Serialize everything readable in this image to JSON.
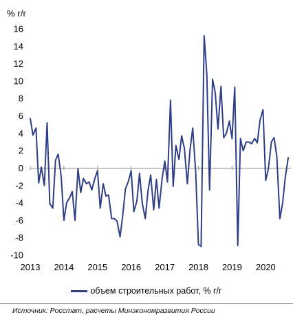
{
  "chart_data": {
    "type": "line",
    "unit_label": "% г/г",
    "xlim": [
      2013.0,
      2020.75
    ],
    "ylim": [
      -10,
      16
    ],
    "yticks": [
      16,
      14,
      12,
      10,
      8,
      6,
      4,
      2,
      0,
      -2,
      -4,
      -6,
      -8,
      -10
    ],
    "xticks": [
      "2013",
      "2014",
      "2015",
      "2016",
      "2017",
      "2018",
      "2019",
      "2020"
    ],
    "grid": false,
    "legend_position": "bottom",
    "color": "#2e3e86",
    "series": [
      {
        "name": "объем строительных работ, % г/г",
        "x": [
          2013.0,
          2013.08,
          2013.17,
          2013.25,
          2013.33,
          2013.42,
          2013.5,
          2013.58,
          2013.67,
          2013.75,
          2013.83,
          2013.92,
          2014.0,
          2014.08,
          2014.17,
          2014.25,
          2014.33,
          2014.42,
          2014.5,
          2014.58,
          2014.67,
          2014.75,
          2014.83,
          2014.92,
          2015.0,
          2015.08,
          2015.17,
          2015.25,
          2015.33,
          2015.42,
          2015.5,
          2015.58,
          2015.67,
          2015.75,
          2015.83,
          2015.92,
          2016.0,
          2016.08,
          2016.17,
          2016.25,
          2016.33,
          2016.42,
          2016.5,
          2016.58,
          2016.67,
          2016.75,
          2016.83,
          2016.92,
          2017.0,
          2017.08,
          2017.17,
          2017.25,
          2017.33,
          2017.42,
          2017.5,
          2017.58,
          2017.67,
          2017.75,
          2017.83,
          2017.92,
          2018.0,
          2018.08,
          2018.17,
          2018.25,
          2018.33,
          2018.42,
          2018.5,
          2018.58,
          2018.67,
          2018.75,
          2018.83,
          2018.92,
          2019.0,
          2019.08,
          2019.17,
          2019.25,
          2019.33,
          2019.42,
          2019.5,
          2019.58,
          2019.67,
          2019.75,
          2019.83,
          2019.92,
          2020.0,
          2020.08,
          2020.17,
          2020.25,
          2020.33,
          2020.42,
          2020.5,
          2020.58,
          2020.67
        ],
        "values": [
          5.7,
          3.8,
          4.6,
          -1.7,
          0.1,
          -2.0,
          5.2,
          -4.1,
          -4.6,
          0.9,
          1.6,
          -1.0,
          -6.0,
          -4.0,
          -3.4,
          -2.7,
          -6.0,
          -0.1,
          -2.8,
          -1.2,
          -1.8,
          -1.6,
          -2.5,
          -1.2,
          -0.3,
          -4.6,
          -1.8,
          -3.2,
          -3.1,
          -5.8,
          -5.8,
          -6.1,
          -7.9,
          -5.4,
          -2.4,
          -1.5,
          -0.3,
          -5.0,
          -3.8,
          -0.6,
          -4.0,
          -5.8,
          -2.6,
          -0.8,
          -4.8,
          -1.3,
          -4.6,
          -1.2,
          0.8,
          -1.6,
          7.8,
          -2.1,
          2.6,
          1.0,
          3.7,
          2.3,
          -1.8,
          2.1,
          4.6,
          -0.6,
          -8.8,
          -9.0,
          15.2,
          10.8,
          -2.5,
          10.2,
          8.6,
          4.5,
          9.4,
          3.5,
          4.0,
          5.4,
          3.4,
          9.3,
          -8.9,
          3.4,
          2.0,
          3.0,
          3.0,
          2.8,
          3.4,
          2.9,
          5.5,
          6.7,
          -1.4,
          -0.1,
          3.0,
          3.5,
          1.3,
          -5.8,
          -4.1,
          -1.1,
          1.2
        ]
      }
    ]
  },
  "legend": {
    "label": "объем строительных работ, % г/г"
  },
  "source": "Источник: Росстат, расчеты Минэкономразвития России"
}
